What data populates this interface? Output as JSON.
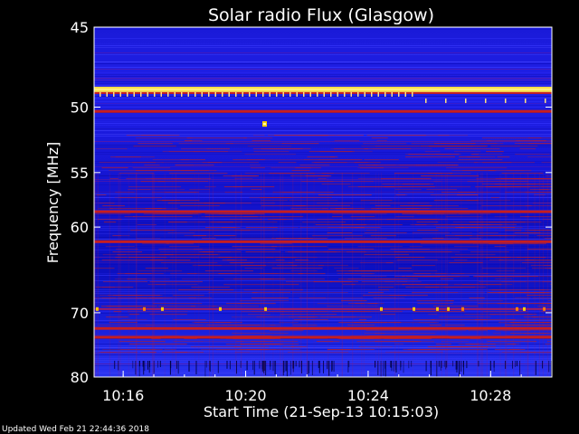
{
  "chart_data": {
    "type": "heatmap",
    "title": "Solar radio Flux (Glasgow)",
    "xlabel": "Start Time (21-Sep-13 10:15:03)",
    "ylabel": "Frequency [MHz]",
    "x_ticks": [
      "10:16",
      "10:20",
      "10:24",
      "10:28"
    ],
    "x_tick_minutes": [
      16,
      20,
      24,
      28
    ],
    "x_range_minutes": [
      15.05,
      30.0
    ],
    "y_ticks": [
      45,
      50,
      55,
      60,
      70,
      80
    ],
    "y_range": [
      45,
      80
    ],
    "y_scale": "reciprocal",
    "colormap": [
      "#00008c",
      "#0a14e6",
      "#3c3cff",
      "#8c1e64",
      "#c81e1e",
      "#ff3c00",
      "#ffcc00",
      "#ffffa0"
    ],
    "bands": [
      {
        "freq_mhz": 48.8,
        "level": "high",
        "note": "continuous emission line"
      },
      {
        "freq_mhz": 50.3,
        "level": "medium"
      },
      {
        "freq_mhz": 58.5,
        "level": "medium"
      },
      {
        "freq_mhz": 61.5,
        "level": "medium"
      },
      {
        "freq_mhz": 69.5,
        "level": "low"
      },
      {
        "freq_mhz": 72.2,
        "level": "medium"
      },
      {
        "freq_mhz": 73.5,
        "level": "medium"
      }
    ]
  },
  "footer": {
    "updated": "Updated Wed Feb 21 22:44:36 2018"
  }
}
